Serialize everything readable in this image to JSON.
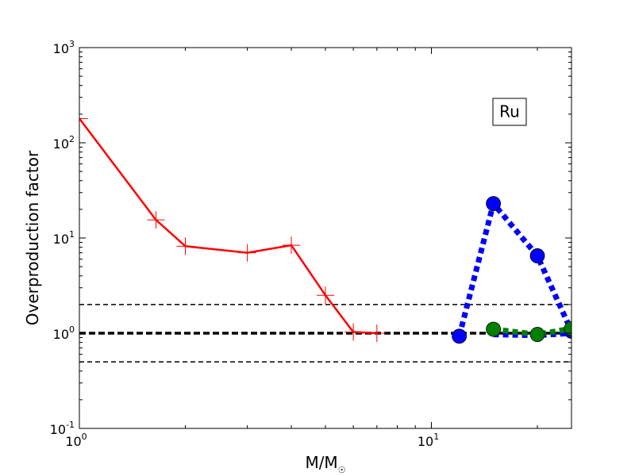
{
  "chart_data": {
    "type": "line",
    "title": "",
    "xlabel": "M/M",
    "xlabel_subscript": "☉",
    "ylabel": "Overproduction factor",
    "xscale": "log",
    "yscale": "log",
    "xlim": [
      1,
      25
    ],
    "ylim": [
      0.1,
      1000
    ],
    "grid": false,
    "legend": "none",
    "annotation": "Ru",
    "x_ticks": [
      {
        "base": "10",
        "exp": "0",
        "value": 1
      },
      {
        "base": "10",
        "exp": "1",
        "value": 10
      }
    ],
    "y_ticks": [
      {
        "base": "10",
        "exp": "-1",
        "value": 0.1
      },
      {
        "base": "10",
        "exp": "0",
        "value": 1
      },
      {
        "base": "10",
        "exp": "1",
        "value": 10
      },
      {
        "base": "10",
        "exp": "2",
        "value": 100
      },
      {
        "base": "10",
        "exp": "3",
        "value": 1000
      }
    ],
    "reference_lines": [
      {
        "y": 2,
        "style": "dashed"
      },
      {
        "y": 1,
        "style": "dashed-thick"
      },
      {
        "y": 0.5,
        "style": "dashed"
      }
    ],
    "series": [
      {
        "color": "#ff0000",
        "line": "solid",
        "marker": "plus",
        "x": [
          1,
          1.65,
          2,
          3,
          4,
          5,
          6,
          7
        ],
        "y": [
          180,
          15.5,
          8.2,
          7.0,
          8.4,
          2.5,
          1.03,
          1.0
        ]
      },
      {
        "color": "#0000ff",
        "line": "dotted",
        "marker": "circle",
        "x": [
          12,
          15,
          20,
          25
        ],
        "y": [
          0.93,
          23,
          6.5,
          1.05
        ]
      },
      {
        "color": "#0000ff",
        "line": "dotted",
        "marker": "none",
        "x": [
          15,
          20,
          25
        ],
        "y": [
          0.97,
          0.95,
          1.0
        ]
      },
      {
        "color": "#008000",
        "line": "dotted",
        "marker": "circle",
        "x": [
          15,
          20,
          25
        ],
        "y": [
          1.1,
          0.97,
          1.12
        ]
      }
    ]
  }
}
